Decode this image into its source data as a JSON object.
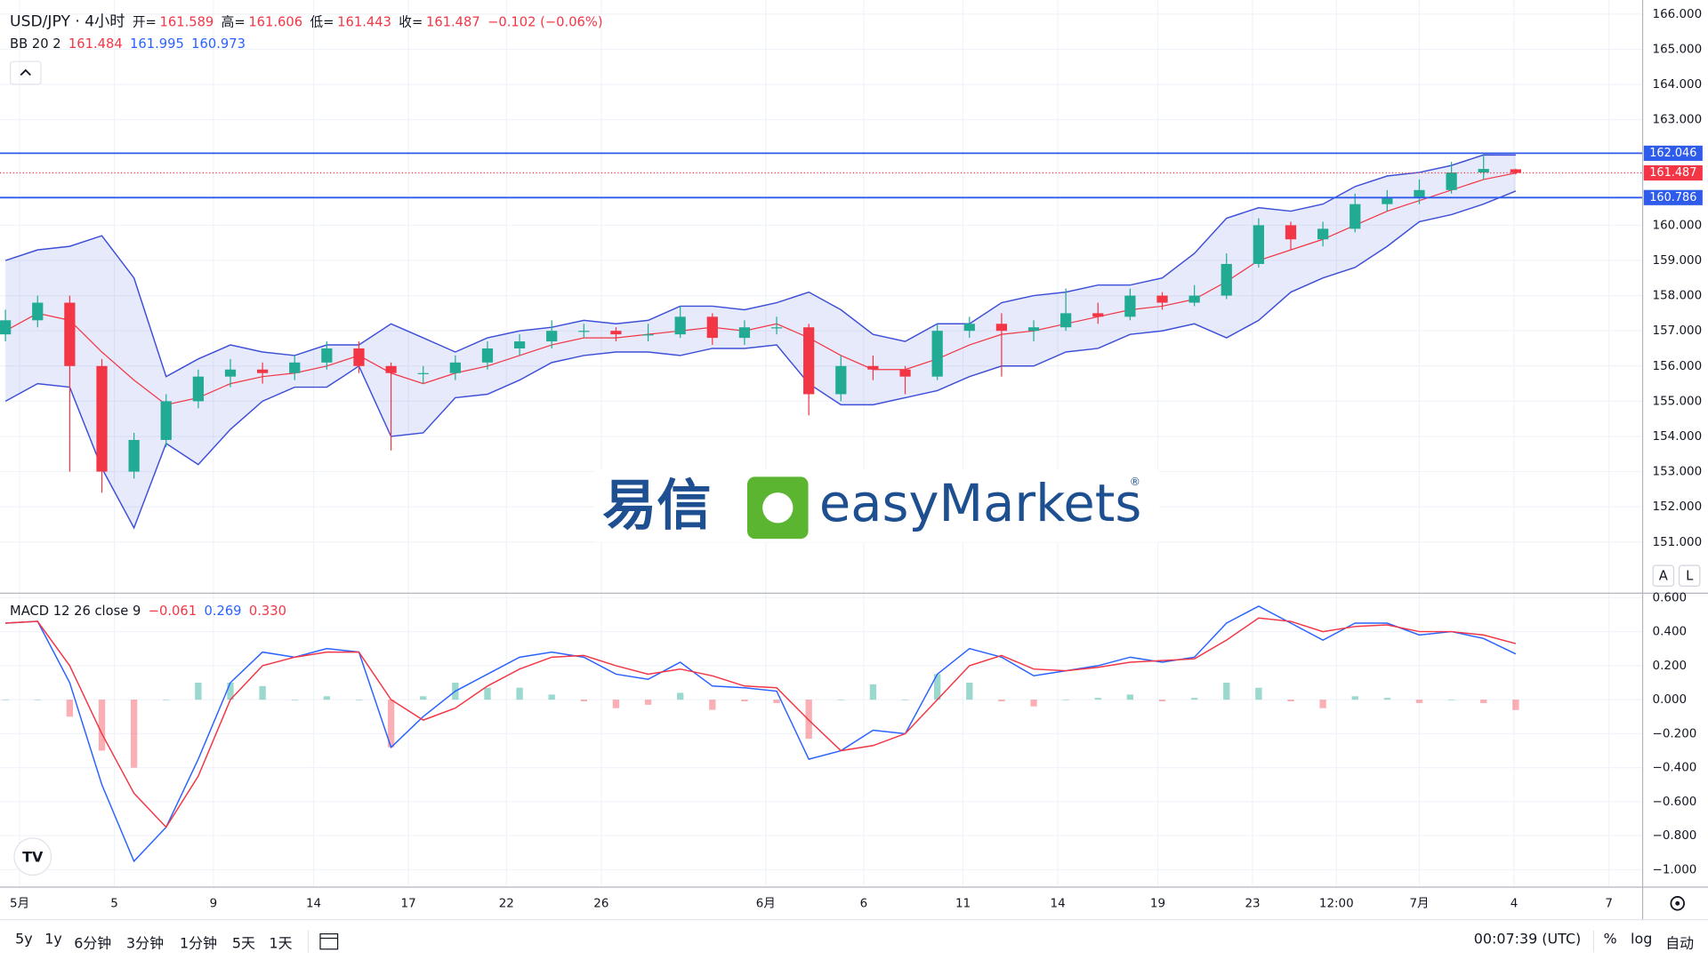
{
  "header": {
    "symbol": "USD/JPY · 4小时",
    "open_label": "开=",
    "open": "161.589",
    "high_label": "高=",
    "high": "161.606",
    "low_label": "低=",
    "low": "161.443",
    "close_label": "收=",
    "close": "161.487",
    "change": "−0.102 (−0.06%)",
    "bb_label": "BB 20 2",
    "bb_middle": "161.484",
    "bb_upper": "161.995",
    "bb_lower": "160.973",
    "macd_label": "MACD 12 26 close 9",
    "macd_hist": "−0.061",
    "macd_line": "0.269",
    "macd_signal": "0.330"
  },
  "logo": {
    "chinese": "易信",
    "brand": "easyMarkets",
    "mark": "®"
  },
  "scale_buttons": [
    "A",
    "L"
  ],
  "toolbar": {
    "ranges": [
      "5y",
      "1y",
      "6分钟",
      "3分钟",
      "1分钟",
      "5天",
      "1天"
    ],
    "clock": "00:07:39 (UTC)",
    "percent": "%",
    "log": "log",
    "auto": "自动"
  },
  "chart_data": {
    "type": "candlestick",
    "x": [
      0,
      1,
      2,
      3,
      4,
      5,
      6,
      7,
      8,
      9,
      10,
      11,
      12,
      13,
      14,
      15,
      16,
      17,
      18,
      19,
      20,
      21,
      22,
      23,
      24,
      25,
      26,
      27,
      28,
      29,
      30,
      31,
      32,
      33,
      34,
      35,
      36,
      37,
      38,
      39,
      40,
      41,
      42,
      43,
      44,
      45,
      46,
      47
    ],
    "open": [
      156.9,
      157.3,
      157.8,
      156.0,
      153.0,
      153.9,
      155.0,
      155.7,
      155.9,
      155.8,
      156.1,
      156.5,
      156.0,
      155.8,
      155.8,
      156.1,
      156.5,
      156.7,
      157.0,
      157.0,
      156.9,
      156.9,
      157.4,
      156.8,
      157.1,
      157.1,
      155.2,
      156.0,
      155.9,
      155.7,
      157.0,
      157.2,
      157.0,
      157.1,
      157.5,
      157.4,
      158.0,
      157.8,
      158.0,
      158.9,
      160.0,
      159.6,
      159.9,
      160.6,
      160.8,
      161.0,
      161.5,
      161.589
    ],
    "high": [
      157.6,
      158.0,
      158.0,
      156.2,
      154.1,
      155.2,
      155.9,
      156.2,
      156.1,
      156.3,
      156.7,
      156.7,
      156.1,
      156.0,
      156.3,
      156.7,
      156.9,
      157.3,
      157.2,
      157.1,
      157.2,
      157.7,
      157.5,
      157.3,
      157.4,
      157.2,
      156.3,
      156.3,
      156.0,
      157.2,
      157.4,
      157.5,
      157.3,
      158.2,
      157.8,
      158.2,
      158.1,
      158.3,
      159.2,
      160.2,
      160.1,
      160.1,
      160.9,
      161.0,
      161.3,
      161.8,
      162.0,
      161.606
    ],
    "low": [
      156.7,
      157.1,
      153.0,
      152.4,
      152.8,
      153.7,
      154.8,
      155.4,
      155.5,
      155.6,
      155.9,
      155.8,
      153.6,
      155.5,
      155.6,
      155.9,
      156.3,
      156.5,
      156.8,
      156.7,
      156.7,
      156.8,
      156.6,
      156.6,
      156.9,
      154.6,
      155.0,
      155.6,
      155.2,
      155.6,
      156.8,
      155.7,
      156.7,
      157.0,
      157.2,
      157.3,
      157.6,
      157.7,
      157.9,
      158.8,
      159.3,
      159.4,
      159.8,
      160.4,
      160.6,
      160.9,
      161.3,
      161.443
    ],
    "close": [
      157.3,
      157.8,
      156.0,
      153.0,
      153.9,
      155.0,
      155.7,
      155.9,
      155.8,
      156.1,
      156.5,
      156.0,
      155.8,
      155.8,
      156.1,
      156.5,
      156.7,
      157.0,
      157.0,
      156.9,
      156.9,
      157.4,
      156.8,
      157.1,
      157.1,
      155.2,
      156.0,
      155.9,
      155.7,
      157.0,
      157.2,
      157.0,
      157.1,
      157.5,
      157.4,
      158.0,
      157.8,
      158.0,
      158.9,
      160.0,
      159.6,
      159.9,
      160.6,
      160.8,
      161.0,
      161.5,
      161.6,
      161.487
    ],
    "up_color": "#22ab94",
    "down_color": "#f23645",
    "xlim": [
      -0.17,
      50.95
    ],
    "xticks": [
      {
        "value": 0.44,
        "label": "5月"
      },
      {
        "value": 3.39,
        "label": "5"
      },
      {
        "value": 6.47,
        "label": "9"
      },
      {
        "value": 9.59,
        "label": "14"
      },
      {
        "value": 12.54,
        "label": "17"
      },
      {
        "value": 15.59,
        "label": "22"
      },
      {
        "value": 18.54,
        "label": "26"
      },
      {
        "value": 23.66,
        "label": "6月"
      },
      {
        "value": 26.71,
        "label": "6"
      },
      {
        "value": 29.8,
        "label": "11"
      },
      {
        "value": 32.75,
        "label": "14"
      },
      {
        "value": 35.86,
        "label": "19"
      },
      {
        "value": 38.81,
        "label": "23"
      },
      {
        "value": 41.42,
        "label": "12:00"
      },
      {
        "value": 44.0,
        "label": "7月"
      },
      {
        "value": 46.95,
        "label": "4"
      },
      {
        "value": 49.9,
        "label": "7"
      }
    ],
    "ylim": [
      149.7,
      166.4
    ],
    "yticks": [
      {
        "value": 151,
        "label": "151.000"
      },
      {
        "value": 152,
        "label": "152.000"
      },
      {
        "value": 153,
        "label": "153.000"
      },
      {
        "value": 154,
        "label": "154.000"
      },
      {
        "value": 155,
        "label": "155.000"
      },
      {
        "value": 156,
        "label": "156.000"
      },
      {
        "value": 157,
        "label": "157.000"
      },
      {
        "value": 158,
        "label": "158.000"
      },
      {
        "value": 159,
        "label": "159.000"
      },
      {
        "value": 160,
        "label": "160.000"
      },
      {
        "value": 163,
        "label": "163.000"
      },
      {
        "value": 164,
        "label": "164.000"
      },
      {
        "value": 165,
        "label": "165.000"
      },
      {
        "value": 166,
        "label": "166.000"
      }
    ],
    "grid": true,
    "bollinger": {
      "band_color": "#3d4fd8",
      "middle_color": "#f23645",
      "upper": [
        159.0,
        159.3,
        159.4,
        159.7,
        158.5,
        155.7,
        156.2,
        156.6,
        156.4,
        156.3,
        156.6,
        156.6,
        157.2,
        156.8,
        156.4,
        156.8,
        157.0,
        157.1,
        157.3,
        157.2,
        157.3,
        157.7,
        157.7,
        157.6,
        157.8,
        158.1,
        157.6,
        156.9,
        156.7,
        157.2,
        157.2,
        157.8,
        158.0,
        158.1,
        158.3,
        158.3,
        158.5,
        159.2,
        160.2,
        160.5,
        160.4,
        160.6,
        161.1,
        161.4,
        161.5,
        161.7,
        162.0,
        161.995
      ],
      "middle": [
        157.0,
        157.5,
        157.3,
        156.4,
        155.6,
        154.9,
        155.1,
        155.5,
        155.7,
        155.8,
        156.0,
        156.3,
        155.8,
        155.5,
        155.8,
        156.0,
        156.3,
        156.6,
        156.8,
        156.8,
        156.9,
        157.0,
        157.1,
        157.0,
        157.2,
        156.8,
        156.3,
        155.9,
        155.9,
        156.2,
        156.6,
        156.9,
        157.0,
        157.2,
        157.4,
        157.6,
        157.7,
        157.9,
        158.4,
        159.0,
        159.3,
        159.6,
        160.0,
        160.4,
        160.7,
        161.0,
        161.3,
        161.484
      ],
      "lower": [
        155.0,
        155.5,
        155.4,
        153.1,
        151.4,
        153.8,
        153.2,
        154.2,
        155.0,
        155.4,
        155.4,
        156.0,
        154.0,
        154.1,
        155.1,
        155.2,
        155.6,
        156.1,
        156.3,
        156.4,
        156.4,
        156.3,
        156.5,
        156.5,
        156.6,
        155.5,
        154.9,
        154.9,
        155.1,
        155.3,
        155.7,
        156.0,
        156.0,
        156.4,
        156.5,
        156.9,
        157.0,
        157.2,
        156.8,
        157.3,
        158.1,
        158.5,
        158.8,
        159.4,
        160.1,
        160.3,
        160.6,
        160.973
      ]
    },
    "levels": [
      162.046,
      160.786
    ],
    "level_color": "#2f5bea",
    "last_price": 161.487,
    "macd": {
      "type": "macd",
      "macd_color": "#2962ff",
      "signal_color": "#f23645",
      "ylim": [
        -1.102,
        0.626
      ],
      "yticks": [
        {
          "value": -1,
          "label": "−1.000"
        },
        {
          "value": -0.8,
          "label": "−0.800"
        },
        {
          "value": -0.6,
          "label": "−0.600"
        },
        {
          "value": -0.4,
          "label": "−0.400"
        },
        {
          "value": -0.2,
          "label": "−0.200"
        },
        {
          "value": 0,
          "label": "0.000"
        },
        {
          "value": 0.2,
          "label": "0.200"
        },
        {
          "value": 0.4,
          "label": "0.400"
        },
        {
          "value": 0.6,
          "label": "0.600"
        }
      ],
      "macd": [
        0.45,
        0.46,
        0.1,
        -0.5,
        -0.95,
        -0.75,
        -0.35,
        0.1,
        0.28,
        0.25,
        0.3,
        0.28,
        -0.28,
        -0.1,
        0.05,
        0.15,
        0.25,
        0.28,
        0.25,
        0.15,
        0.12,
        0.22,
        0.08,
        0.07,
        0.05,
        -0.35,
        -0.3,
        -0.18,
        -0.2,
        0.15,
        0.3,
        0.25,
        0.14,
        0.17,
        0.2,
        0.25,
        0.22,
        0.25,
        0.45,
        0.55,
        0.45,
        0.35,
        0.45,
        0.45,
        0.38,
        0.4,
        0.36,
        0.269
      ],
      "signal": [
        0.45,
        0.46,
        0.2,
        -0.2,
        -0.55,
        -0.75,
        -0.45,
        0.0,
        0.2,
        0.25,
        0.28,
        0.28,
        0.0,
        -0.12,
        -0.05,
        0.08,
        0.18,
        0.25,
        0.26,
        0.2,
        0.15,
        0.18,
        0.14,
        0.08,
        0.07,
        -0.12,
        -0.3,
        -0.27,
        -0.2,
        0.0,
        0.2,
        0.26,
        0.18,
        0.17,
        0.19,
        0.22,
        0.23,
        0.24,
        0.35,
        0.48,
        0.46,
        0.4,
        0.43,
        0.44,
        0.4,
        0.4,
        0.38,
        0.33
      ],
      "histogram": [
        0,
        0,
        -0.1,
        -0.3,
        -0.4,
        0,
        0.1,
        0.1,
        0.08,
        0,
        0.02,
        0,
        -0.28,
        0.02,
        0.1,
        0.07,
        0.07,
        0.03,
        -0.01,
        -0.05,
        -0.03,
        0.04,
        -0.06,
        -0.01,
        -0.02,
        -0.23,
        0,
        0.09,
        0,
        0.15,
        0.1,
        -0.01,
        -0.04,
        0,
        0.01,
        0.03,
        -0.01,
        0.01,
        0.1,
        0.07,
        -0.01,
        -0.05,
        0.02,
        0.01,
        -0.02,
        0,
        -0.02,
        -0.061
      ]
    }
  }
}
